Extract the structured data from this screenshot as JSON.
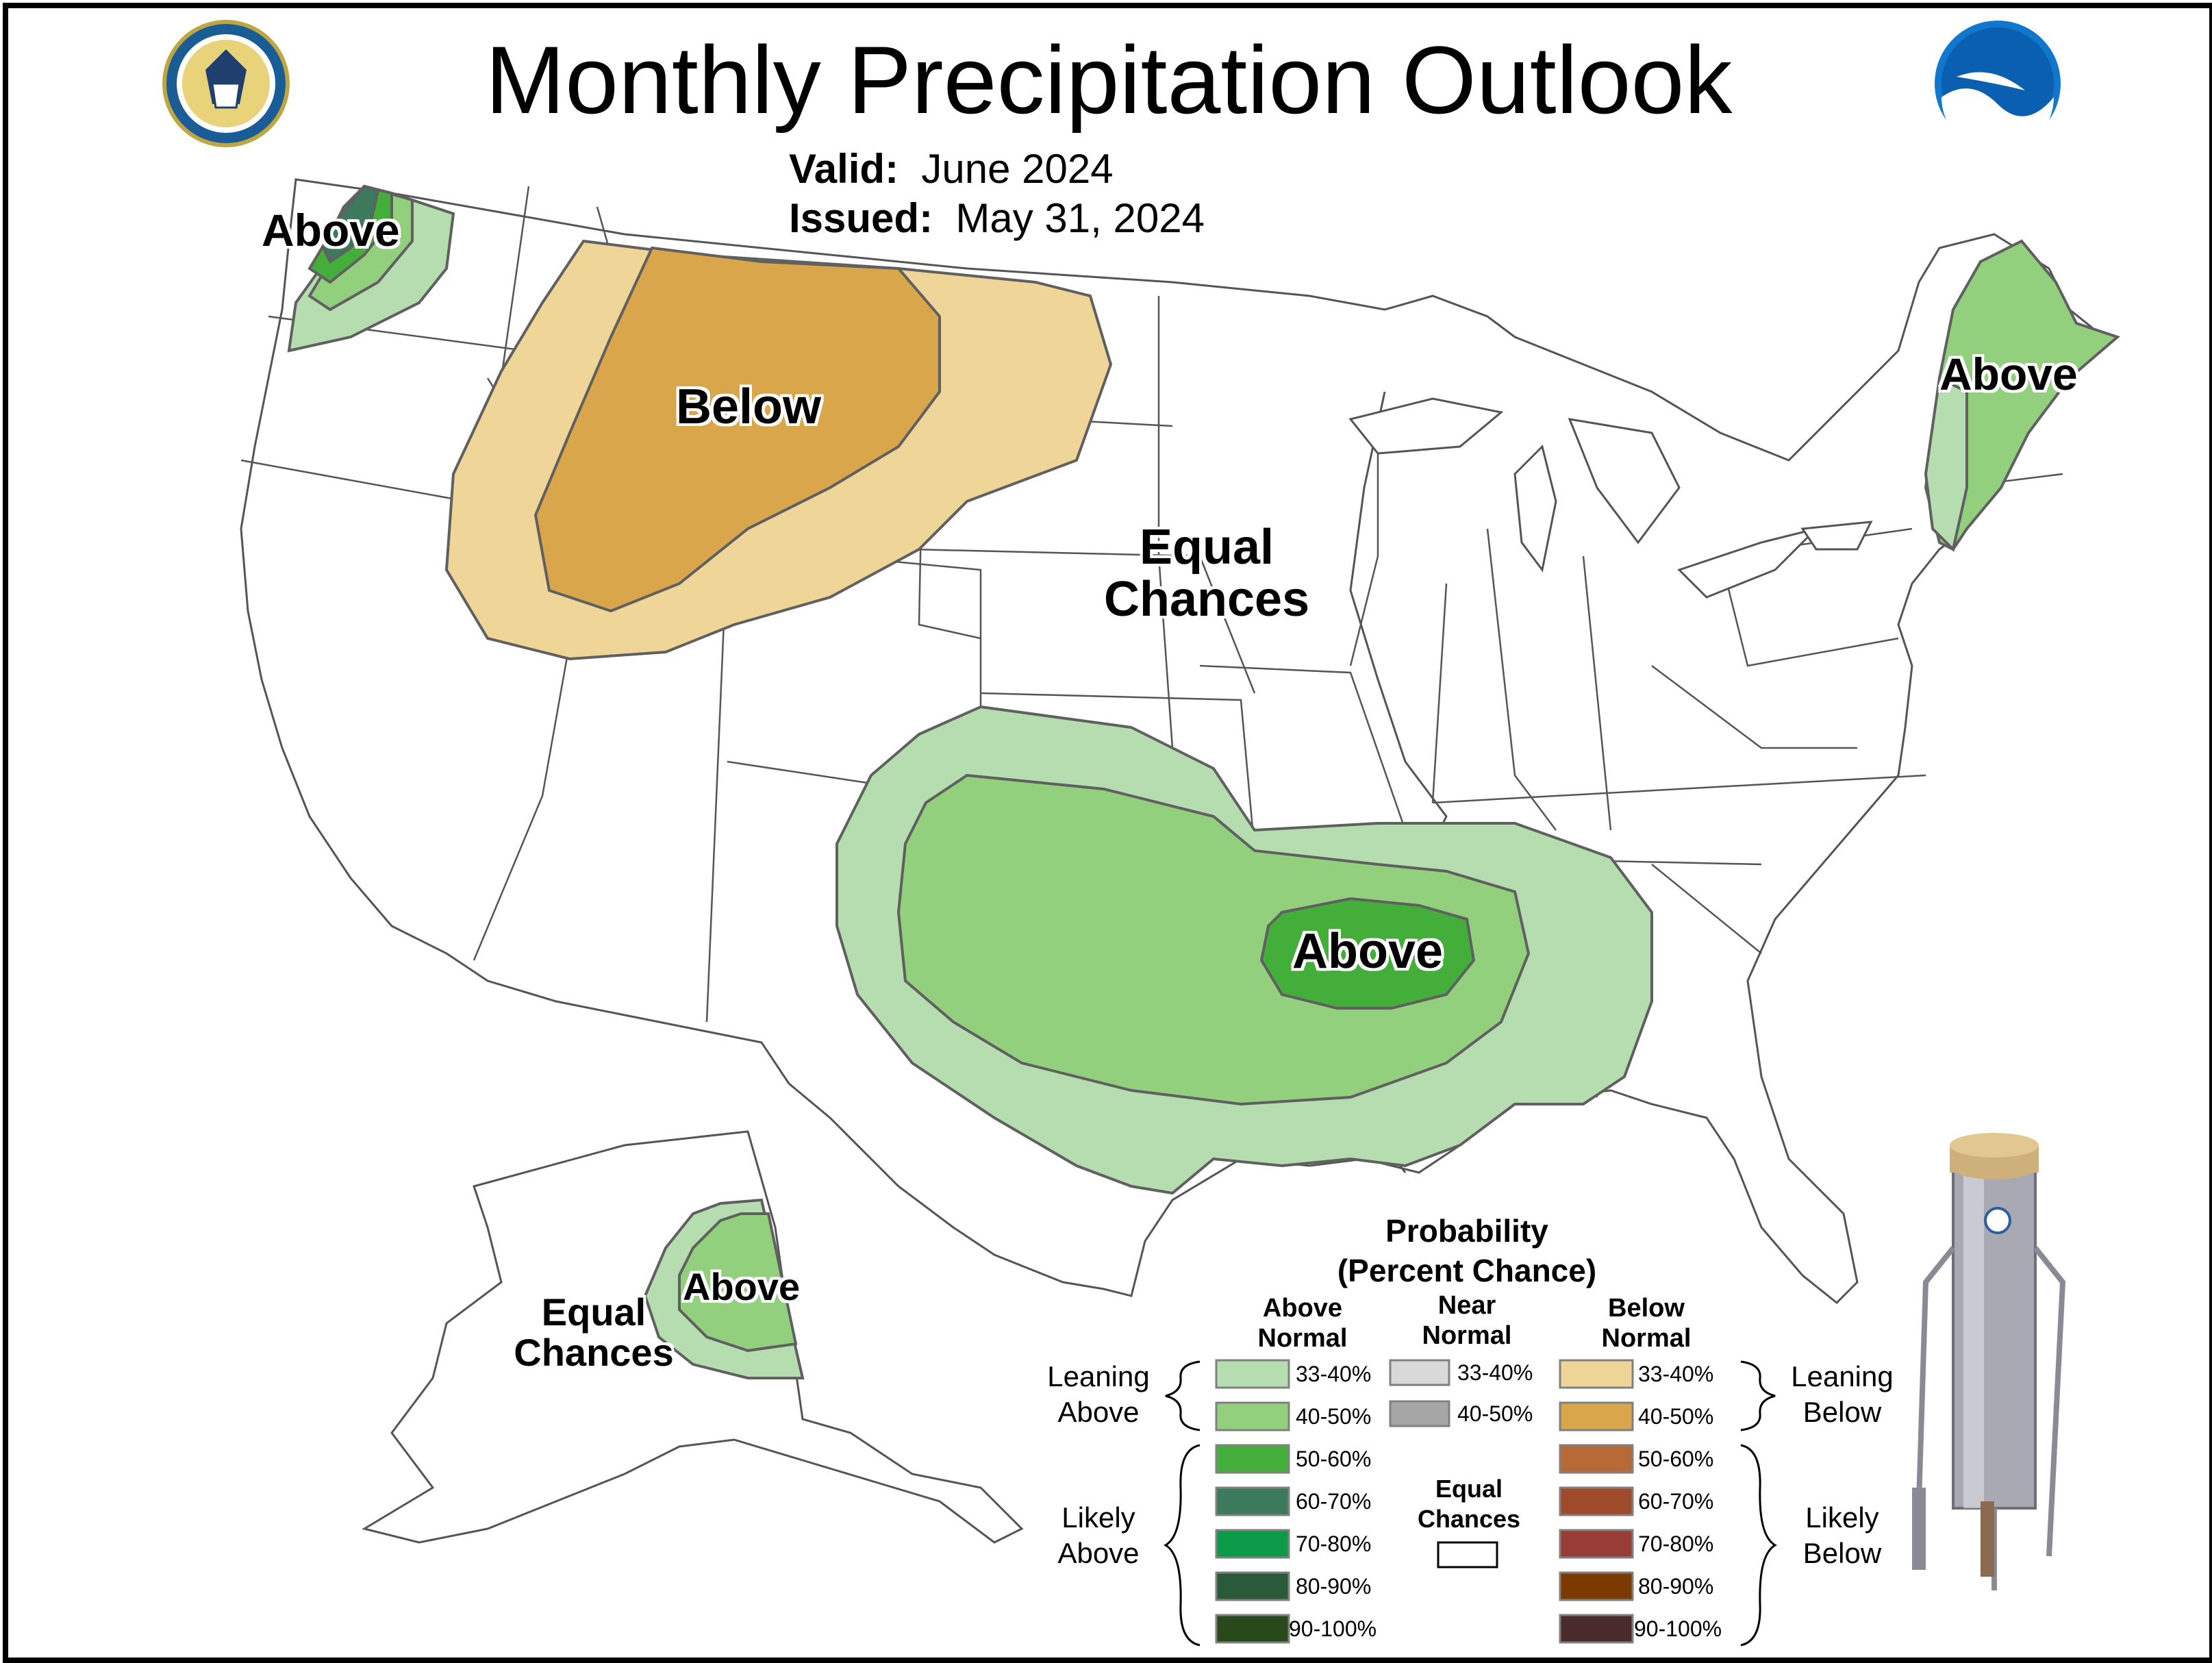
{
  "title": "Monthly Precipitation Outlook",
  "valid_label": "Valid:",
  "valid_value": "June 2024",
  "issued_label": "Issued:",
  "issued_value": "May 31, 2024",
  "logos": {
    "commerce": "DEPARTMENT OF COMMERCE · UNITED STATES OF AMERICA",
    "noaa": "NOAA"
  },
  "regions": {
    "nw_above": "Above",
    "ne_above": "Above",
    "below": "Below",
    "equal_line1": "Equal",
    "equal_line2": "Chances",
    "south_above": "Above",
    "alaska_above": "Above",
    "alaska_equal_line1": "Equal",
    "alaska_equal_line2": "Chances"
  },
  "colors": {
    "above_33_40": "#b5ddb0",
    "above_40_50": "#93d07e",
    "above_50_60": "#44ae3a",
    "above_60_70": "#3b7a5c",
    "above_70_80": "#0a9a48",
    "above_80_90": "#2a5a3a",
    "above_90_100": "#284a1a",
    "near_33_40": "#d9d9d9",
    "near_40_50": "#a6a6a6",
    "below_33_40": "#f0d598",
    "below_40_50": "#d9a64c",
    "below_50_60": "#b86a36",
    "below_60_70": "#a04a2c",
    "below_70_80": "#973c36",
    "below_80_90": "#7a3a00",
    "below_90_100": "#4a2a2a",
    "outline": "#606060",
    "boundary": "#555555"
  },
  "legend": {
    "title_line1": "Probability",
    "title_line2": "(Percent Chance)",
    "above_head_1": "Above",
    "above_head_2": "Normal",
    "near_head_1": "Near",
    "near_head_2": "Normal",
    "below_head_1": "Below",
    "below_head_2": "Normal",
    "leaning_above_1": "Leaning",
    "leaning_above_2": "Above",
    "likely_above_1": "Likely",
    "likely_above_2": "Above",
    "leaning_below_1": "Leaning",
    "leaning_below_2": "Below",
    "likely_below_1": "Likely",
    "likely_below_2": "Below",
    "equal_1": "Equal",
    "equal_2": "Chances",
    "above_ranges": [
      "33-40%",
      "40-50%",
      "50-60%",
      "60-70%",
      "70-80%",
      "80-90%",
      "90-100%"
    ],
    "near_ranges": [
      "33-40%",
      "40-50%"
    ],
    "below_ranges": [
      "33-40%",
      "40-50%",
      "50-60%",
      "60-70%",
      "70-80%",
      "80-90%",
      "90-100%"
    ]
  }
}
